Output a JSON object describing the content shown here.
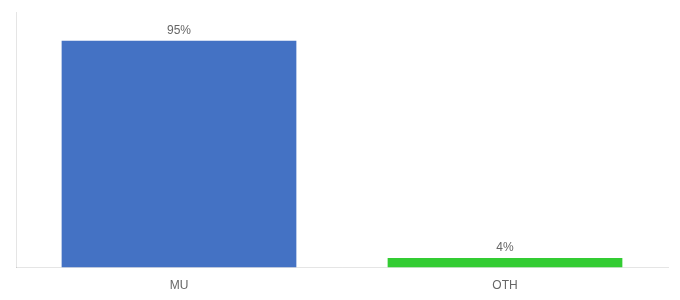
{
  "chart_data": {
    "type": "bar",
    "categories": [
      "MU",
      "OTH"
    ],
    "values": [
      95,
      4
    ],
    "value_labels": [
      "95%",
      "4%"
    ],
    "data_labels": true,
    "colors": [
      "#4472C4",
      "#33CC33"
    ],
    "ylim": [
      0,
      107
    ],
    "grid": false,
    "tick_labels": "x"
  }
}
